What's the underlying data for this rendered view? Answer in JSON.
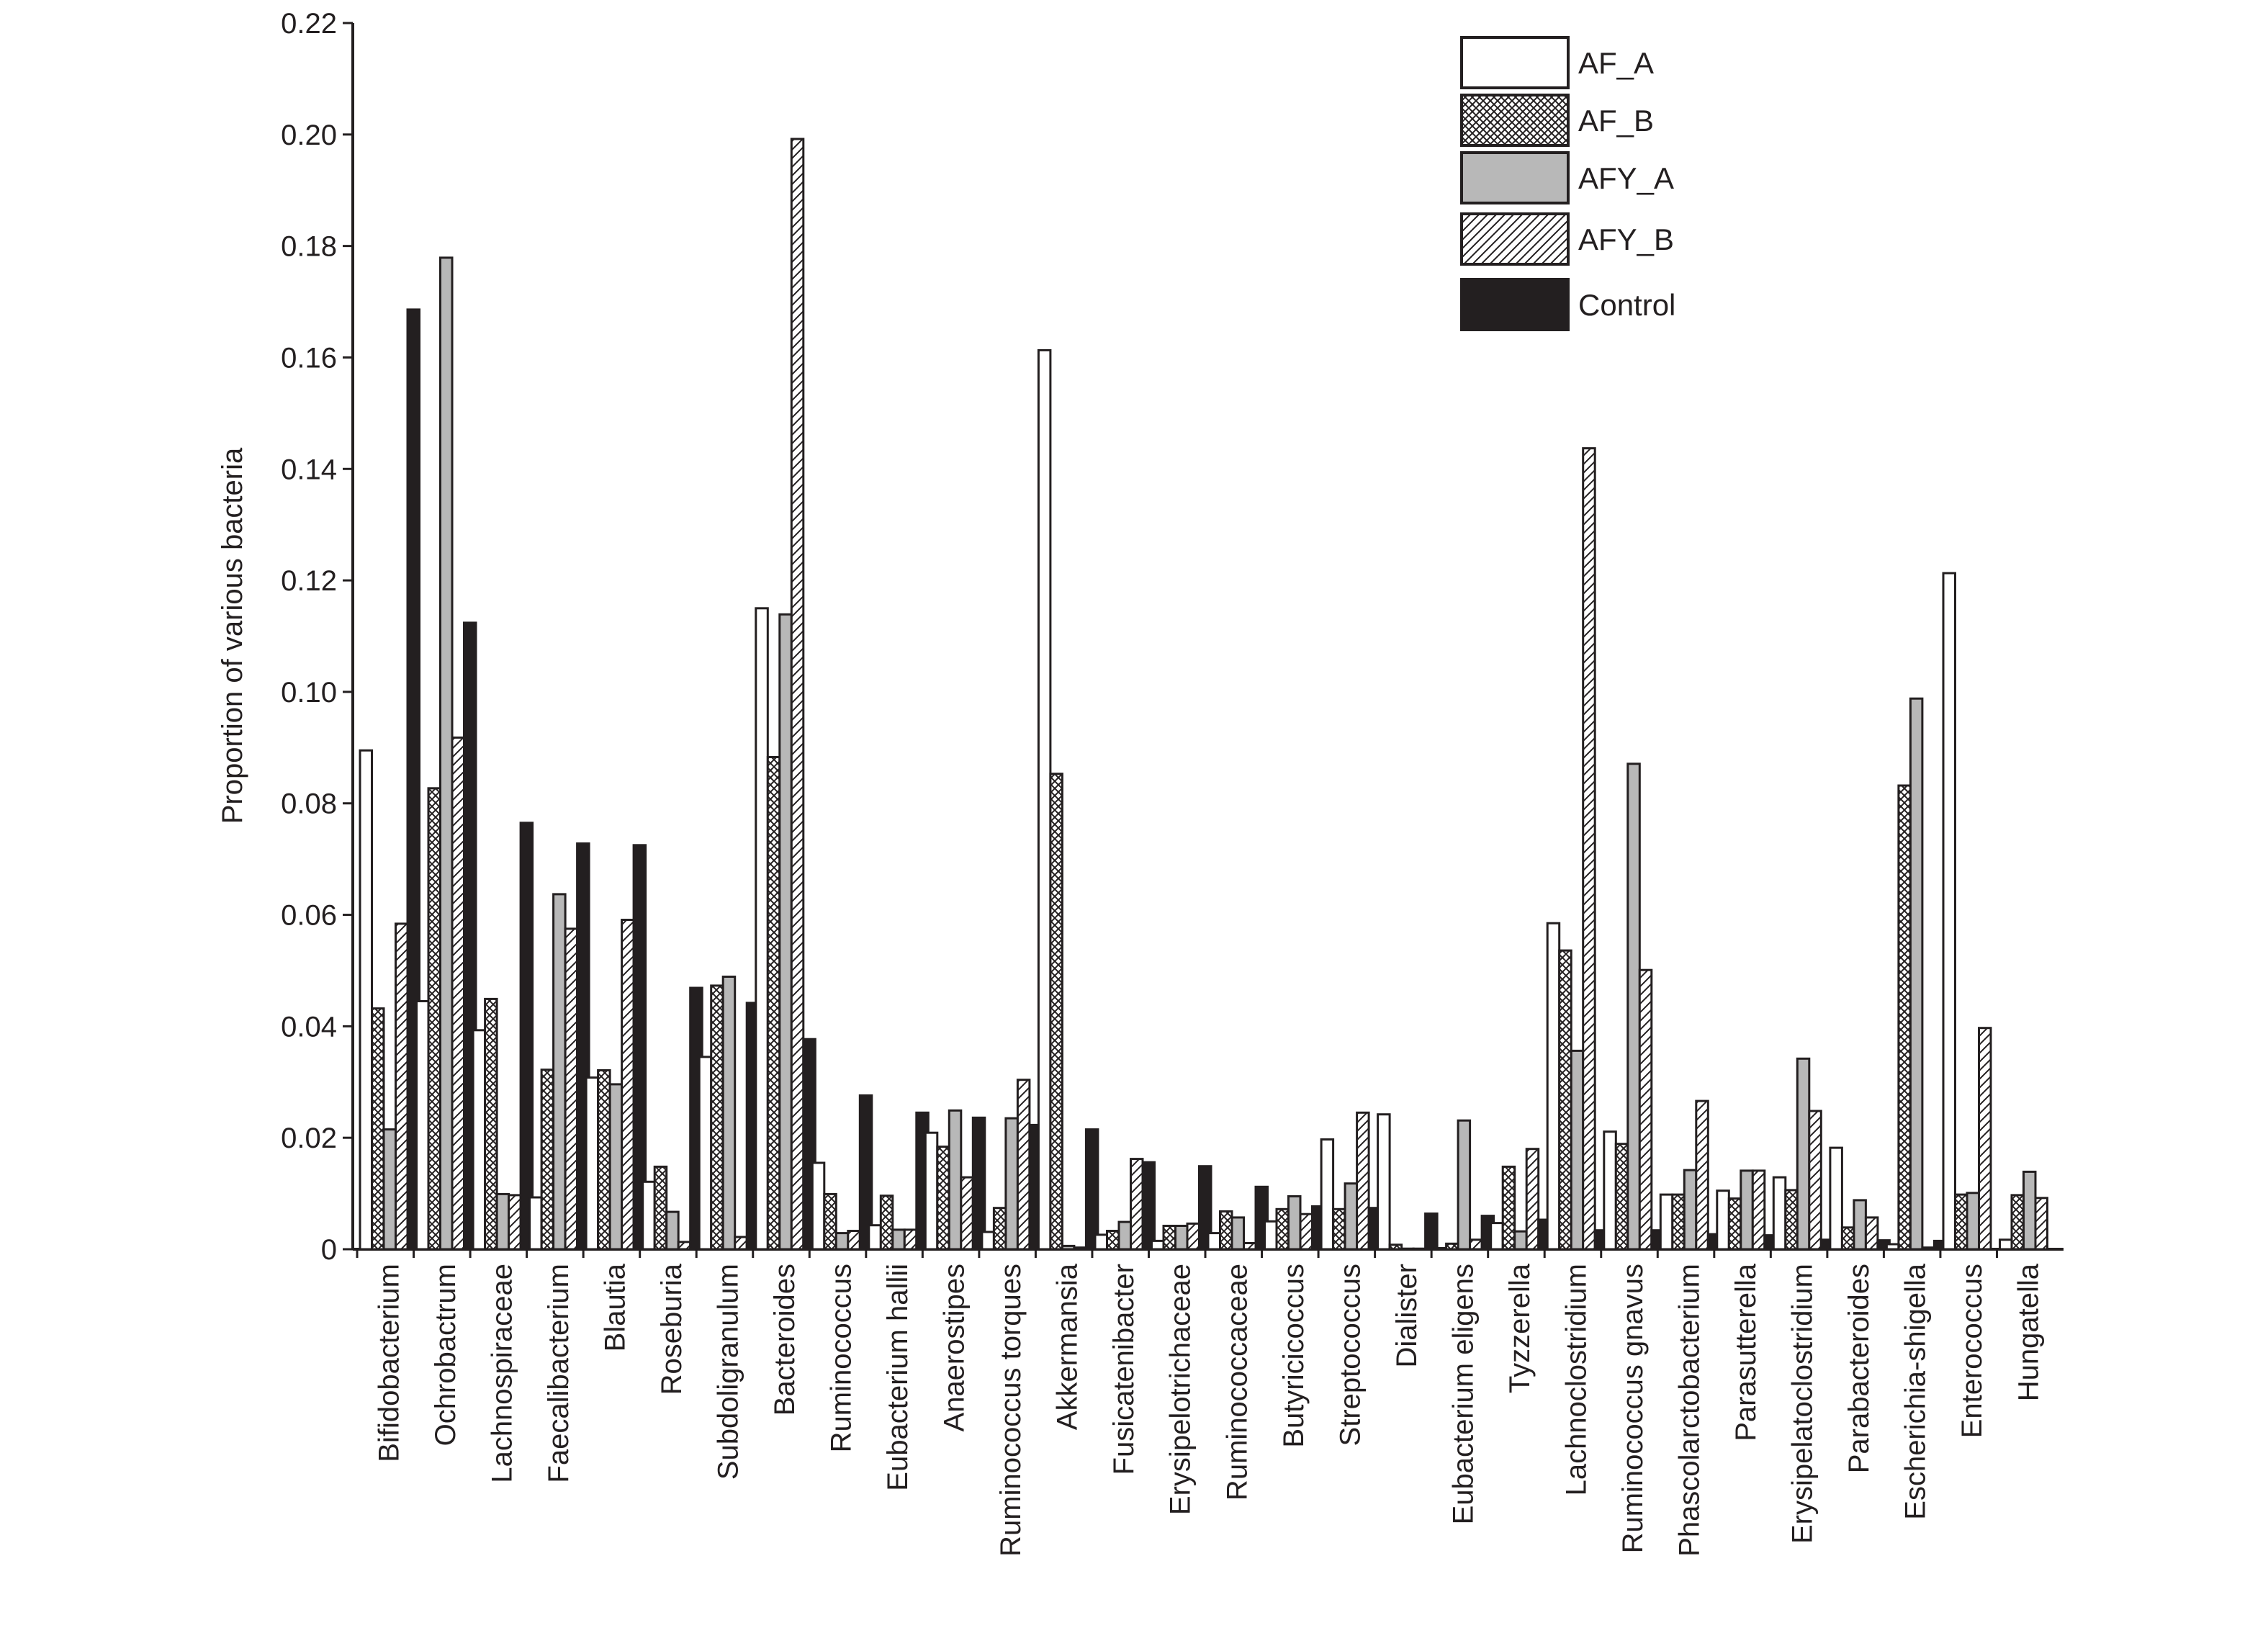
{
  "chart_data": {
    "type": "bar",
    "title": "",
    "xlabel": "",
    "ylabel": "Proportion of various bacteria",
    "ylim": [
      0,
      0.22
    ],
    "yticks": [
      "0",
      "0.02",
      "0.04",
      "0.06",
      "0.08",
      "0.10",
      "0.12",
      "0.14",
      "0.16",
      "0.18",
      "0.20",
      "0.22"
    ],
    "grid": false,
    "legend_position": "top-right",
    "categories": [
      "Bifidobacterium",
      "Ochrobactrum",
      "Lachnospiraceae",
      "Faecalibacterium",
      "Blautia",
      "Roseburia",
      "Subdoligranulum",
      "Bacteroides",
      "Ruminococcus",
      "Eubacterium hallii",
      "Anaerostipes",
      "Ruminococcus torques",
      "Akkermansia",
      "Fusicatenibacter",
      "Erysipelotrichaceae",
      "Ruminococcaceae",
      "Butyricicoccus",
      "Streptococcus",
      "Dialister",
      "Eubacterium eligens",
      "Tyzzerella",
      "Lachnoclostridium",
      "Ruminococcus gnavus",
      "Phascolarctobacterium",
      "Parasutterella",
      "Erysipelatoclostridium",
      "Parabacteroides",
      "Escherichia-shigella",
      "Enterococcus",
      "Hungatella"
    ],
    "series": [
      {
        "name": "AF_A",
        "pattern": "white",
        "values": [
          0.0895,
          0.0445,
          0.0393,
          0.0093,
          0.0308,
          0.0121,
          0.0345,
          0.115,
          0.0155,
          0.0043,
          0.0209,
          0.0031,
          0.1613,
          0.0026,
          0.0015,
          0.0029,
          0.005,
          0.0197,
          0.0242,
          0.0002,
          0.0047,
          0.0585,
          0.0211,
          0.0098,
          0.0105,
          0.0129,
          0.0182,
          0.0009,
          0.1213,
          0.0017
        ]
      },
      {
        "name": "AF_B",
        "pattern": "crosshatch",
        "values": [
          0.0432,
          0.0827,
          0.0449,
          0.0322,
          0.0321,
          0.0148,
          0.0473,
          0.0883,
          0.0099,
          0.0096,
          0.0184,
          0.0074,
          0.0853,
          0.0033,
          0.0042,
          0.0068,
          0.0072,
          0.0072,
          0.0008,
          0.001,
          0.0148,
          0.0536,
          0.0189,
          0.0098,
          0.0091,
          0.0106,
          0.0039,
          0.0832,
          0.0098,
          0.0097
        ]
      },
      {
        "name": "AFY_A",
        "pattern": "gray",
        "values": [
          0.0215,
          0.1779,
          0.0099,
          0.0637,
          0.0296,
          0.0067,
          0.0489,
          0.1139,
          0.0029,
          0.0035,
          0.0249,
          0.0235,
          0.0006,
          0.0049,
          0.0042,
          0.0057,
          0.0095,
          0.0118,
          0.0001,
          0.0231,
          0.0032,
          0.0356,
          0.0871,
          0.0142,
          0.0141,
          0.0342,
          0.0088,
          0.0988,
          0.0101,
          0.0139
        ]
      },
      {
        "name": "AFY_B",
        "pattern": "diagonal",
        "values": [
          0.0584,
          0.0918,
          0.0097,
          0.0575,
          0.0591,
          0.0013,
          0.0022,
          0.1992,
          0.0033,
          0.0035,
          0.0129,
          0.0304,
          0.0003,
          0.0162,
          0.0046,
          0.0011,
          0.0063,
          0.0245,
          0.0001,
          0.0017,
          0.018,
          0.1437,
          0.0501,
          0.0266,
          0.0141,
          0.0248,
          0.0057,
          0.0003,
          0.0397,
          0.0092
        ]
      },
      {
        "name": "Control",
        "pattern": "black",
        "values": [
          0.1686,
          0.1124,
          0.0765,
          0.0728,
          0.0725,
          0.0469,
          0.0442,
          0.0377,
          0.0276,
          0.0245,
          0.0236,
          0.0223,
          0.0215,
          0.0156,
          0.0149,
          0.0112,
          0.0077,
          0.0074,
          0.0064,
          0.006,
          0.0053,
          0.0034,
          0.0034,
          0.0027,
          0.0025,
          0.0017,
          0.0016,
          0.0015,
          0.0,
          0.0
        ]
      }
    ]
  },
  "colors": {
    "ink": "#231f20",
    "gray_fill": "#b8b8b8",
    "white_fill": "#ffffff",
    "black_fill": "#231f20"
  }
}
